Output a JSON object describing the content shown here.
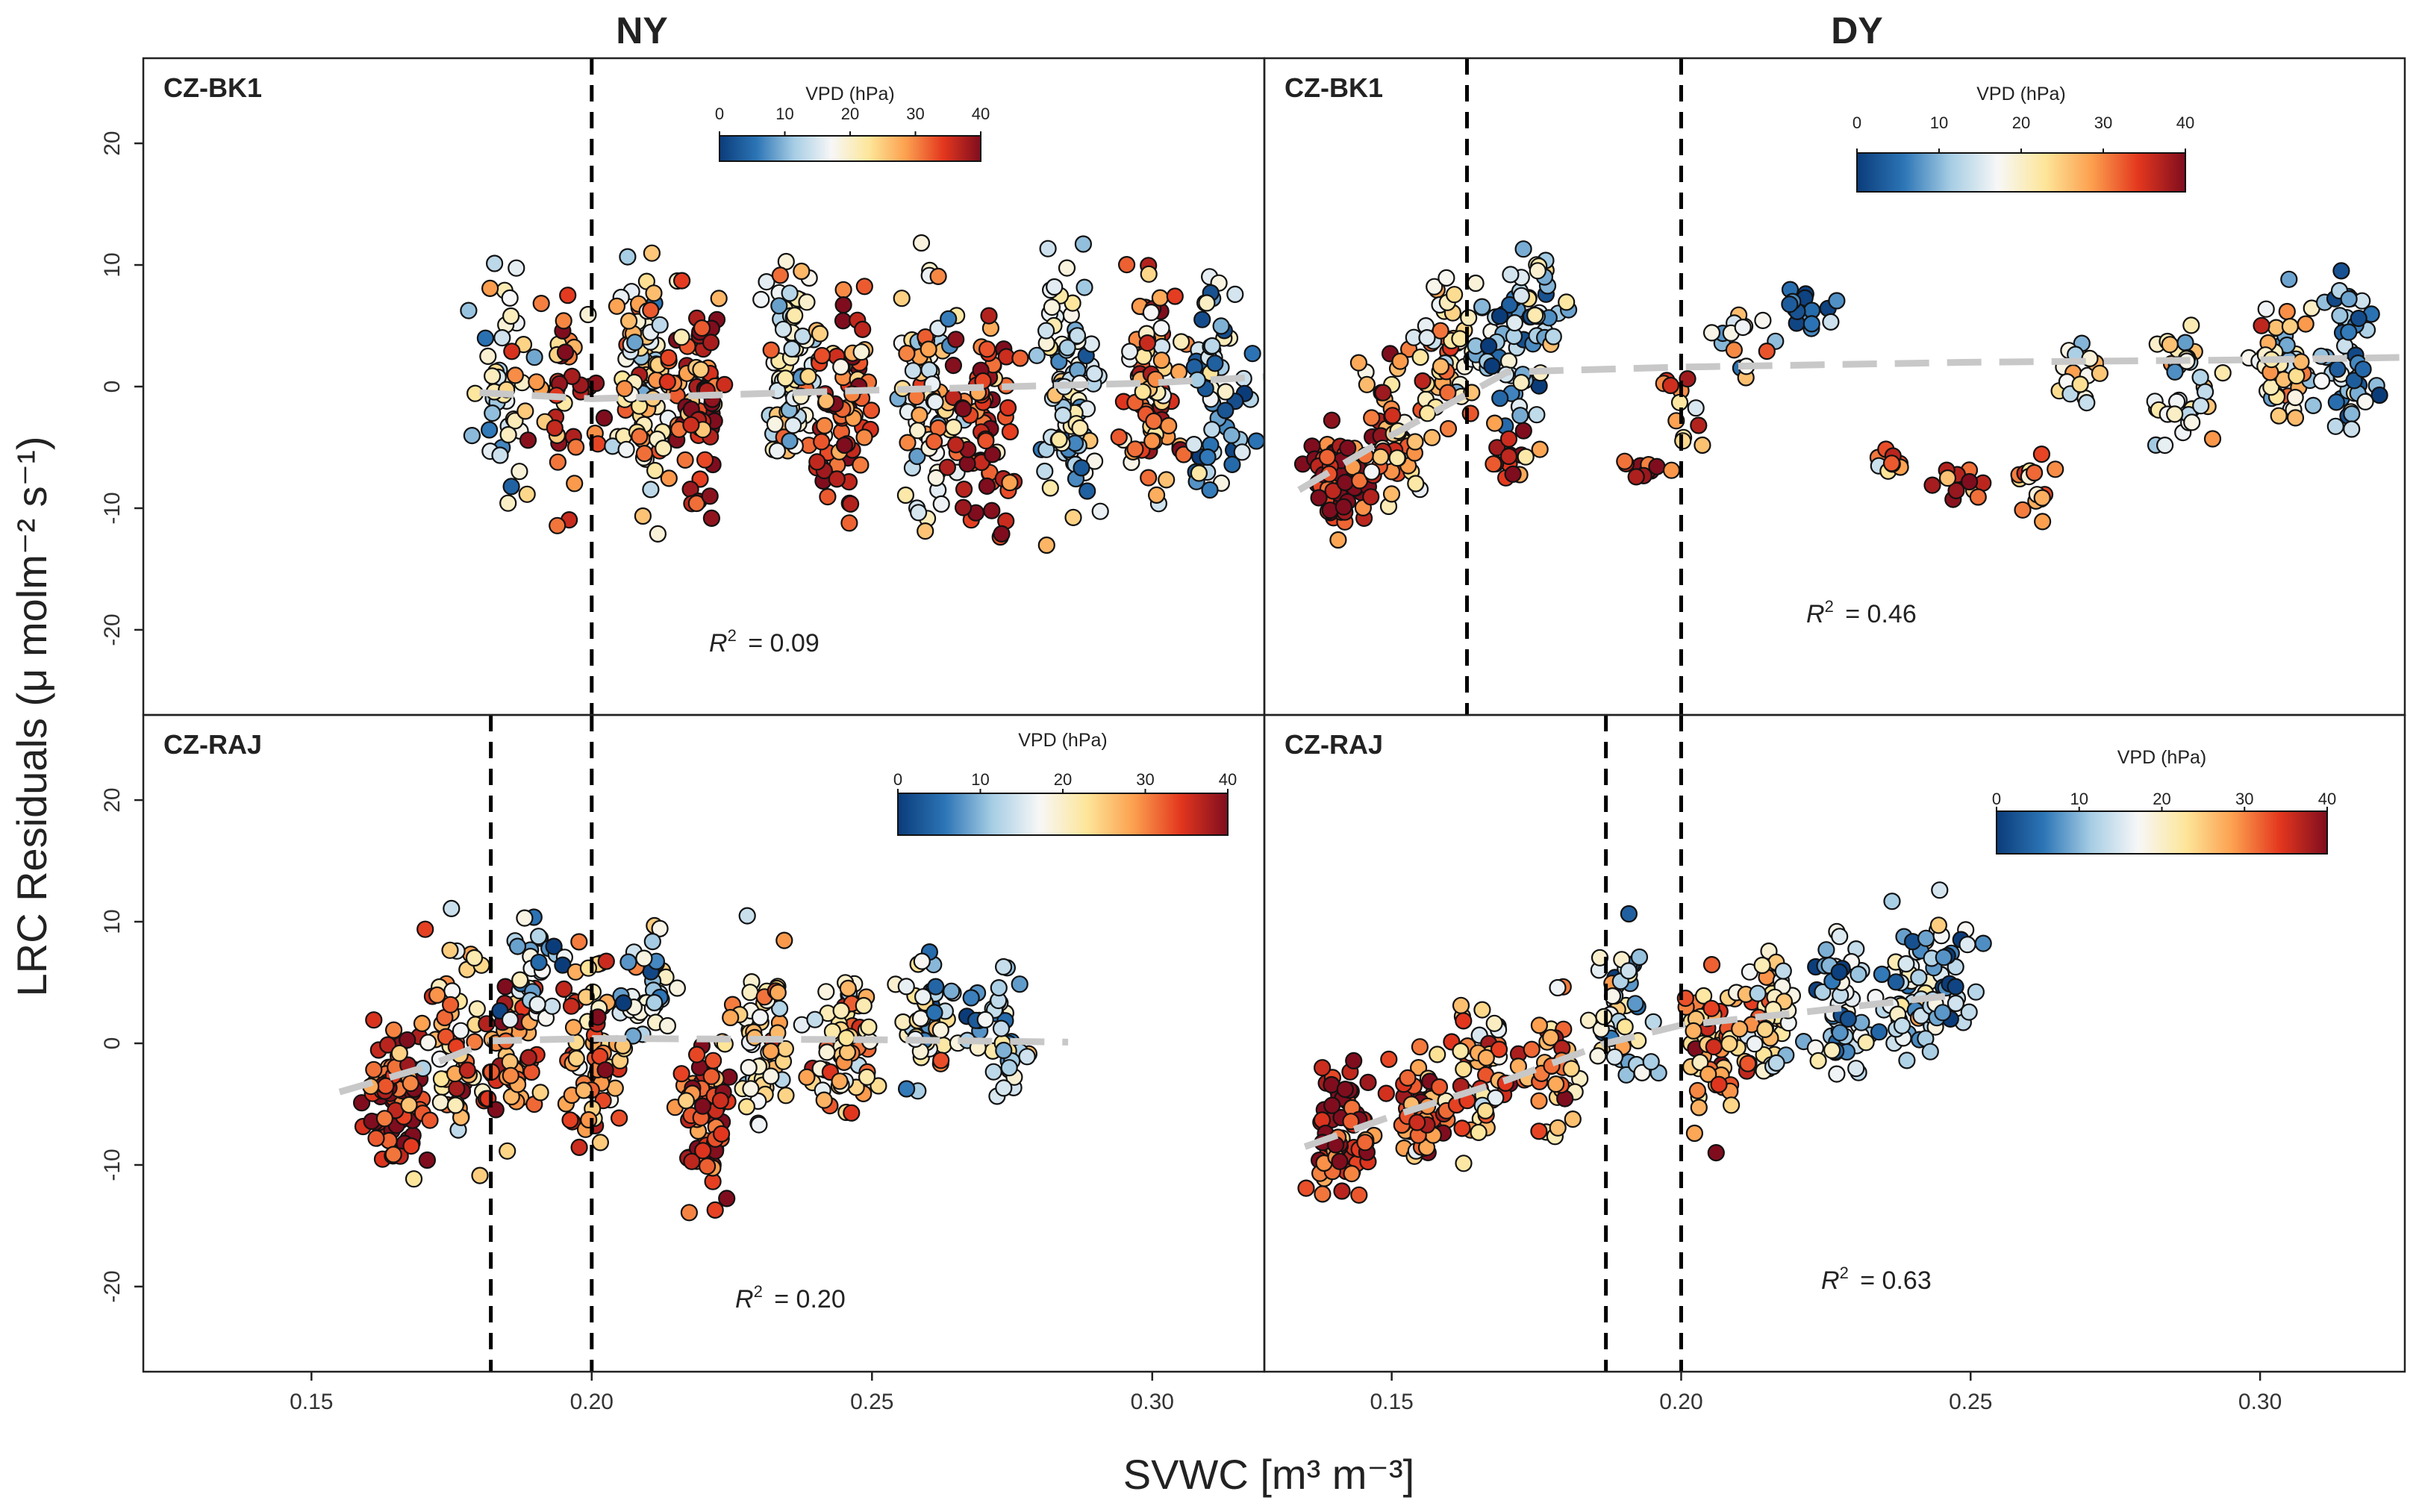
{
  "figure": {
    "columns": [
      "NY",
      "DY"
    ],
    "ylabel": "LRC Residuals (μ molm⁻² s⁻¹)",
    "xlabel": "SVWC [m³ m⁻³]"
  },
  "colors": {
    "fit_line": "#c8c8c8",
    "threshold_line": "#000000",
    "vpd_scale": [
      "#0b3c7a",
      "#2c75b6",
      "#a6cde4",
      "#f7f7f7",
      "#fde69a",
      "#fca04f",
      "#e3371e",
      "#7f0d1e"
    ]
  },
  "chart_data": [
    {
      "type": "scatter",
      "column": "NY",
      "site": "CZ-BK1",
      "r2_prefix": "R",
      "r2_value": "=  0.09",
      "xlim": [
        0.12,
        0.32
      ],
      "ylim": [
        -27,
        27
      ],
      "xticks": [
        "0.15",
        "0.20",
        "0.25",
        "0.30"
      ],
      "yticks": [
        "-20",
        "-10",
        "0",
        "10",
        "20"
      ],
      "vlines": [
        0.2
      ],
      "fit_line": {
        "x": [
          0.18,
          0.2,
          0.25,
          0.3,
          0.32
        ],
        "y": [
          -0.5,
          -1,
          -0.3,
          0.3,
          0.8
        ]
      },
      "colorbar": {
        "title": "VPD (hPa)",
        "ticks": [
          "0",
          "10",
          "20",
          "30",
          "40"
        ],
        "range": [
          0,
          40
        ]
      },
      "point_clusters": [
        {
          "x": 0.184,
          "y": 0,
          "spread_y": 9,
          "vpd": 18,
          "n": 50
        },
        {
          "x": 0.196,
          "y": -1,
          "spread_y": 8,
          "vpd": 32,
          "n": 40
        },
        {
          "x": 0.21,
          "y": 0,
          "spread_y": 9,
          "vpd": 22,
          "n": 90
        },
        {
          "x": 0.22,
          "y": -2,
          "spread_y": 8,
          "vpd": 35,
          "n": 70
        },
        {
          "x": 0.235,
          "y": 1,
          "spread_y": 8,
          "vpd": 18,
          "n": 70
        },
        {
          "x": 0.245,
          "y": -2,
          "spread_y": 9,
          "vpd": 34,
          "n": 70
        },
        {
          "x": 0.26,
          "y": 0,
          "spread_y": 9,
          "vpd": 20,
          "n": 80
        },
        {
          "x": 0.27,
          "y": -3,
          "spread_y": 9,
          "vpd": 36,
          "n": 70
        },
        {
          "x": 0.285,
          "y": 0,
          "spread_y": 10,
          "vpd": 15,
          "n": 90
        },
        {
          "x": 0.3,
          "y": 0,
          "spread_y": 8,
          "vpd": 28,
          "n": 80
        },
        {
          "x": 0.312,
          "y": 1,
          "spread_y": 9,
          "vpd": 12,
          "n": 60
        }
      ]
    },
    {
      "type": "scatter",
      "column": "DY",
      "site": "CZ-BK1",
      "r2_prefix": "R",
      "r2_value": "= 0.46",
      "xlim": [
        0.128,
        0.325
      ],
      "ylim": [
        -27,
        27
      ],
      "xticks": [
        "0.15",
        "0.20",
        "0.25",
        "0.30"
      ],
      "yticks": [],
      "vlines": [
        0.163,
        0.2
      ],
      "fit_line": {
        "x": [
          0.134,
          0.15,
          0.17,
          0.2,
          0.25,
          0.3,
          0.325
        ],
        "y": [
          -8.5,
          -4,
          1.2,
          1.6,
          2,
          2.2,
          2.4
        ]
      },
      "colorbar": {
        "title": "VPD (hPa)",
        "ticks": [
          "0",
          "10",
          "20",
          "30",
          "40"
        ],
        "range": [
          0,
          40
        ]
      },
      "point_clusters": [
        {
          "x": 0.141,
          "y": -8,
          "spread_y": 4,
          "vpd": 38,
          "n": 70
        },
        {
          "x": 0.15,
          "y": -5,
          "spread_y": 6,
          "vpd": 30,
          "n": 50
        },
        {
          "x": 0.16,
          "y": 2,
          "spread_y": 6,
          "vpd": 24,
          "n": 50
        },
        {
          "x": 0.17,
          "y": 3,
          "spread_y": 6,
          "vpd": 10,
          "n": 40
        },
        {
          "x": 0.176,
          "y": 6,
          "spread_y": 5,
          "vpd": 14,
          "n": 30
        },
        {
          "x": 0.172,
          "y": -5,
          "spread_y": 2,
          "vpd": 34,
          "n": 15
        },
        {
          "x": 0.193,
          "y": -7,
          "spread_y": 1,
          "vpd": 36,
          "n": 10
        },
        {
          "x": 0.2,
          "y": -2,
          "spread_y": 3,
          "vpd": 28,
          "n": 12
        },
        {
          "x": 0.21,
          "y": 4,
          "spread_y": 4,
          "vpd": 18,
          "n": 15
        },
        {
          "x": 0.222,
          "y": 6,
          "spread_y": 3,
          "vpd": 8,
          "n": 15
        },
        {
          "x": 0.234,
          "y": -6,
          "spread_y": 1,
          "vpd": 28,
          "n": 10
        },
        {
          "x": 0.248,
          "y": -8,
          "spread_y": 1.5,
          "vpd": 34,
          "n": 12
        },
        {
          "x": 0.262,
          "y": -8,
          "spread_y": 3,
          "vpd": 30,
          "n": 15
        },
        {
          "x": 0.27,
          "y": 1,
          "spread_y": 3,
          "vpd": 18,
          "n": 15
        },
        {
          "x": 0.287,
          "y": 0,
          "spread_y": 5,
          "vpd": 18,
          "n": 40
        },
        {
          "x": 0.304,
          "y": 2,
          "spread_y": 5,
          "vpd": 20,
          "n": 50
        },
        {
          "x": 0.315,
          "y": 3,
          "spread_y": 6,
          "vpd": 10,
          "n": 50
        }
      ]
    },
    {
      "type": "scatter",
      "column": "NY",
      "site": "CZ-RAJ",
      "r2_prefix": "R",
      "r2_value": "= 0.20",
      "xlim": [
        0.12,
        0.32
      ],
      "ylim": [
        -27,
        27
      ],
      "xticks": [
        "0.15",
        "0.20",
        "0.25",
        "0.30"
      ],
      "yticks": [
        "-20",
        "-10",
        "0",
        "10",
        "20"
      ],
      "vlines": [
        0.182,
        0.2
      ],
      "fit_line": {
        "x": [
          0.155,
          0.17,
          0.182,
          0.2,
          0.25,
          0.285
        ],
        "y": [
          -4,
          -2,
          0.2,
          0.4,
          0.3,
          0.1
        ]
      },
      "colorbar": {
        "title": "VPD (hPa)",
        "ticks": [
          "0",
          "10",
          "20",
          "30",
          "40"
        ],
        "range": [
          0,
          40
        ]
      },
      "point_clusters": [
        {
          "x": 0.165,
          "y": -4,
          "spread_y": 6,
          "vpd": 35,
          "n": 80
        },
        {
          "x": 0.175,
          "y": 0,
          "spread_y": 8,
          "vpd": 26,
          "n": 60
        },
        {
          "x": 0.185,
          "y": -2,
          "spread_y": 6,
          "vpd": 34,
          "n": 50
        },
        {
          "x": 0.19,
          "y": 6,
          "spread_y": 5,
          "vpd": 12,
          "n": 30
        },
        {
          "x": 0.2,
          "y": -1,
          "spread_y": 7,
          "vpd": 30,
          "n": 60
        },
        {
          "x": 0.21,
          "y": 4,
          "spread_y": 5,
          "vpd": 16,
          "n": 40
        },
        {
          "x": 0.22,
          "y": -6,
          "spread_y": 6,
          "vpd": 36,
          "n": 70
        },
        {
          "x": 0.23,
          "y": 0,
          "spread_y": 7,
          "vpd": 24,
          "n": 60
        },
        {
          "x": 0.245,
          "y": 0,
          "spread_y": 6,
          "vpd": 26,
          "n": 60
        },
        {
          "x": 0.26,
          "y": 2,
          "spread_y": 5,
          "vpd": 18,
          "n": 50
        },
        {
          "x": 0.272,
          "y": 1,
          "spread_y": 5,
          "vpd": 14,
          "n": 40
        }
      ]
    },
    {
      "type": "scatter",
      "column": "DY",
      "site": "CZ-RAJ",
      "r2_prefix": "R",
      "r2_value": "= 0.63",
      "xlim": [
        0.128,
        0.325
      ],
      "ylim": [
        -27,
        27
      ],
      "xticks": [
        "0.15",
        "0.20",
        "0.25",
        "0.30"
      ],
      "yticks": [],
      "vlines": [
        0.187,
        0.2
      ],
      "fit_line": {
        "x": [
          0.135,
          0.15,
          0.17,
          0.187,
          0.2,
          0.22,
          0.248
        ],
        "y": [
          -8.5,
          -6,
          -3,
          0,
          1.5,
          2.5,
          4
        ]
      },
      "colorbar": {
        "title": "VPD (hPa)",
        "ticks": [
          "0",
          "10",
          "20",
          "30",
          "40"
        ],
        "range": [
          0,
          40
        ]
      },
      "point_clusters": [
        {
          "x": 0.142,
          "y": -7,
          "spread_y": 5,
          "vpd": 37,
          "n": 70
        },
        {
          "x": 0.155,
          "y": -6,
          "spread_y": 5,
          "vpd": 33,
          "n": 50
        },
        {
          "x": 0.165,
          "y": -3,
          "spread_y": 6,
          "vpd": 28,
          "n": 50
        },
        {
          "x": 0.178,
          "y": -3,
          "spread_y": 6,
          "vpd": 28,
          "n": 40
        },
        {
          "x": 0.19,
          "y": 3,
          "spread_y": 6,
          "vpd": 15,
          "n": 50
        },
        {
          "x": 0.205,
          "y": -1,
          "spread_y": 6,
          "vpd": 30,
          "n": 50
        },
        {
          "x": 0.215,
          "y": 2,
          "spread_y": 5,
          "vpd": 22,
          "n": 50
        },
        {
          "x": 0.228,
          "y": 3,
          "spread_y": 6,
          "vpd": 12,
          "n": 50
        },
        {
          "x": 0.24,
          "y": 4,
          "spread_y": 6,
          "vpd": 14,
          "n": 50
        },
        {
          "x": 0.246,
          "y": 6,
          "spread_y": 6,
          "vpd": 10,
          "n": 30
        }
      ]
    }
  ]
}
